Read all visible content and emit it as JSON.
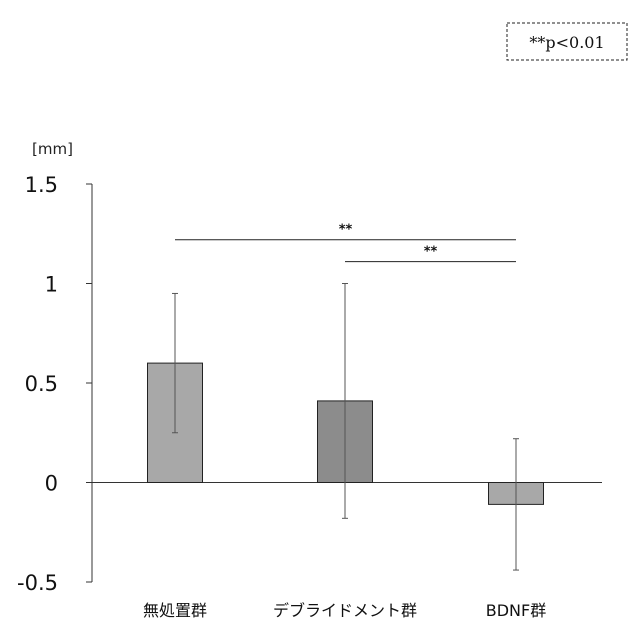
{
  "chart_data": {
    "type": "bar",
    "ylabel": "[mm]",
    "ylim": [
      -0.5,
      1.5
    ],
    "yticks": [
      "1.5",
      "1",
      "0.5",
      "0",
      "-0.5"
    ],
    "categories": [
      "無処置群",
      "デブライドメント群",
      "BDNF群"
    ],
    "values": [
      0.6,
      0.41,
      -0.11
    ],
    "error": [
      0.35,
      0.59,
      0.33
    ],
    "bar_colors": [
      "#a8a8a8",
      "#8c8c8c",
      "#a8a8a8"
    ],
    "significance": [
      {
        "from": 0,
        "to": 2,
        "label": "**",
        "y": 1.22
      },
      {
        "from": 1,
        "to": 2,
        "label": "**",
        "y": 1.11
      }
    ],
    "legend": "**p<0.01",
    "grid": false
  }
}
